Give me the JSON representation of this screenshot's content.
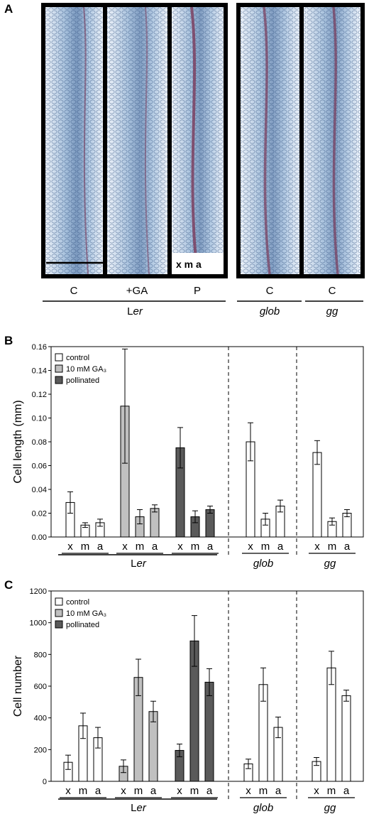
{
  "panel_a": {
    "letter": "A",
    "image_labels": [
      "C",
      "+GA",
      "P",
      "C",
      "C"
    ],
    "group_labels": [
      {
        "plain": "L",
        "italic": "er"
      },
      {
        "plain": "",
        "italic": "glob"
      },
      {
        "plain": "",
        "italic": "gg"
      }
    ],
    "layer_marker": "x m a"
  },
  "panel_b": {
    "letter": "B",
    "ylabel": "Cell length (mm)",
    "y_ticks": [
      "0.00",
      "0.02",
      "0.04",
      "0.06",
      "0.08",
      "0.10",
      "0.12",
      "0.14",
      "0.16"
    ],
    "legend": [
      "control",
      "10 mM GA₃",
      "pollinated"
    ],
    "positions": [
      "x",
      "m",
      "a"
    ],
    "genotypes": [
      {
        "plain": "L",
        "italic": "er"
      },
      {
        "plain": "",
        "italic": "glob"
      },
      {
        "plain": "",
        "italic": "gg"
      }
    ]
  },
  "panel_c": {
    "letter": "C",
    "ylabel": "Cell number",
    "y_ticks": [
      "0",
      "200",
      "400",
      "600",
      "800",
      "1000",
      "1200"
    ],
    "legend": [
      "control",
      "10 mM GA₃",
      "pollinated"
    ],
    "positions": [
      "x",
      "m",
      "a"
    ],
    "genotypes": [
      {
        "plain": "L",
        "italic": "er"
      },
      {
        "plain": "",
        "italic": "glob"
      },
      {
        "plain": "",
        "italic": "gg"
      }
    ]
  },
  "colors": {
    "control": "#ffffff",
    "ga3": "#c0c0c0",
    "pollinated": "#5a5a5a",
    "tissue_blue": "#7aa2cc",
    "tissue_purple": "#7a3a5a"
  },
  "chart_data": [
    {
      "type": "bar",
      "title": "",
      "ylabel": "Cell length (mm)",
      "ylim": [
        0,
        0.16
      ],
      "categories": [
        "x",
        "m",
        "a"
      ],
      "groups": [
        {
          "genotype": "Ler",
          "treatment": "control",
          "values": [
            0.029,
            0.01,
            0.012
          ],
          "errors": [
            0.009,
            0.002,
            0.003
          ]
        },
        {
          "genotype": "Ler",
          "treatment": "10 mM GA3",
          "values": [
            0.11,
            0.017,
            0.024
          ],
          "errors": [
            0.048,
            0.006,
            0.003
          ]
        },
        {
          "genotype": "Ler",
          "treatment": "pollinated",
          "values": [
            0.075,
            0.017,
            0.023
          ],
          "errors": [
            0.017,
            0.005,
            0.003
          ]
        },
        {
          "genotype": "glob",
          "treatment": "control",
          "values": [
            0.08,
            0.015,
            0.026
          ],
          "errors": [
            0.016,
            0.005,
            0.005
          ]
        },
        {
          "genotype": "gg",
          "treatment": "control",
          "values": [
            0.071,
            0.013,
            0.02
          ],
          "errors": [
            0.01,
            0.003,
            0.003
          ]
        }
      ]
    },
    {
      "type": "bar",
      "title": "",
      "ylabel": "Cell number",
      "ylim": [
        0,
        1200
      ],
      "categories": [
        "x",
        "m",
        "a"
      ],
      "groups": [
        {
          "genotype": "Ler",
          "treatment": "control",
          "values": [
            120,
            350,
            275
          ],
          "errors": [
            45,
            80,
            65
          ]
        },
        {
          "genotype": "Ler",
          "treatment": "10 mM GA3",
          "values": [
            95,
            655,
            440
          ],
          "errors": [
            40,
            115,
            65
          ]
        },
        {
          "genotype": "Ler",
          "treatment": "pollinated",
          "values": [
            195,
            885,
            625
          ],
          "errors": [
            40,
            160,
            85
          ]
        },
        {
          "genotype": "glob",
          "treatment": "control",
          "values": [
            110,
            610,
            340
          ],
          "errors": [
            30,
            105,
            65
          ]
        },
        {
          "genotype": "gg",
          "treatment": "control",
          "values": [
            125,
            715,
            540
          ],
          "errors": [
            25,
            105,
            35
          ]
        }
      ]
    }
  ]
}
